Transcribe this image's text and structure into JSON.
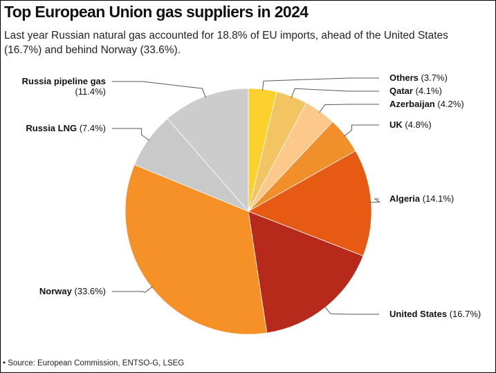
{
  "header": {
    "title": "Top European Union gas suppliers in 2024",
    "subtitle": "Last year Russian natural gas accounted for 18.8% of EU imports, ahead of the United States (16.7%) and behind Norway (33.6%)."
  },
  "footer": {
    "source": "• Source: European Commission, ENTSO-G, LSEG"
  },
  "chart_data": {
    "type": "pie",
    "title": "Top European Union gas suppliers in 2024",
    "unit": "%",
    "start": "12 o'clock, clockwise",
    "slices": [
      {
        "name": "Others",
        "value": 3.7,
        "value_label": "(3.7%)",
        "color": "#fcd12e"
      },
      {
        "name": "Qatar",
        "value": 4.1,
        "value_label": "(4.1%)",
        "color": "#f3c462"
      },
      {
        "name": "Azerbaijan",
        "value": 4.2,
        "value_label": "(4.2%)",
        "color": "#fdc98a"
      },
      {
        "name": "UK",
        "value": 4.8,
        "value_label": "(4.8%)",
        "color": "#f18f2a"
      },
      {
        "name": "Algeria",
        "value": 14.1,
        "value_label": "(14.1%)",
        "color": "#e65a14"
      },
      {
        "name": "United States",
        "value": 16.7,
        "value_label": "(16.7%)",
        "color": "#b72a1b"
      },
      {
        "name": "Norway",
        "value": 33.6,
        "value_label": "(33.6%)",
        "color": "#f59127"
      },
      {
        "name": "Russia LNG",
        "value": 7.4,
        "value_label": "(7.4%)",
        "color": "#c9c9c9"
      },
      {
        "name": "Russia pipeline gas",
        "value": 11.4,
        "value_label": "(11.4%)",
        "color": "#cccccc"
      }
    ]
  }
}
